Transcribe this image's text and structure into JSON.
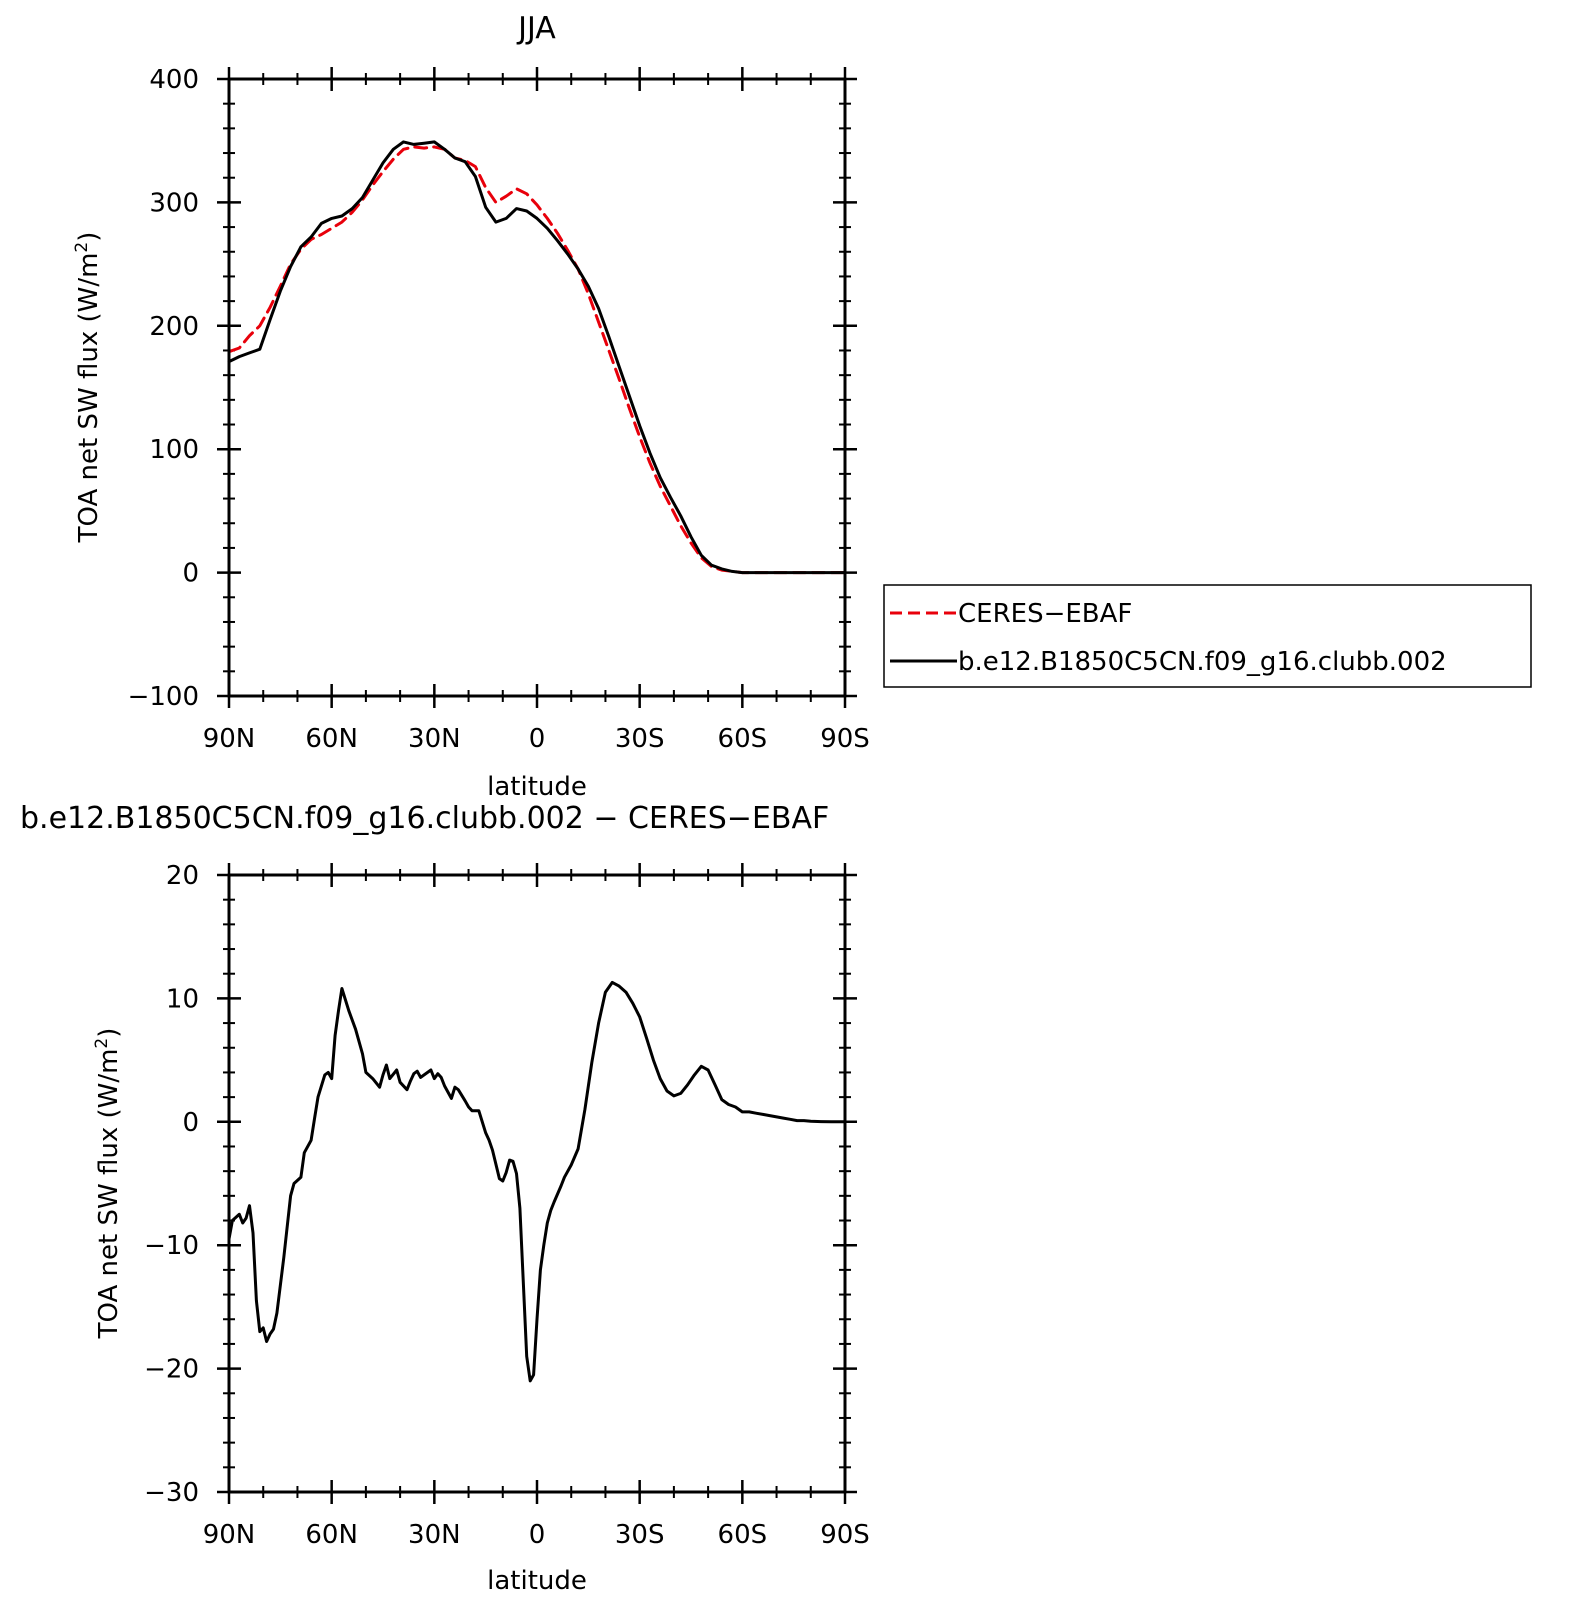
{
  "colors": {
    "ceres": "#e8000b",
    "model": "#000000"
  },
  "top_panel": {
    "title": "JJA",
    "xlabel": "latitude",
    "ylabel_main": "TOA net SW flux (W/m",
    "ylabel_sup": "2",
    "ylabel_end": ")"
  },
  "bottom_panel": {
    "title": "b.e12.B1850C5CN.f09_g16.clubb.002 − CERES−EBAF",
    "xlabel": "latitude",
    "ylabel_main": "TOA net SW flux (W/m",
    "ylabel_sup": "2",
    "ylabel_end": ")"
  },
  "legend": {
    "items": [
      {
        "label": "CERES−EBAF",
        "style": "dashed",
        "color": "#e8000b"
      },
      {
        "label": "b.e12.B1850C5CN.f09_g16.clubb.002",
        "style": "solid",
        "color": "#000000"
      }
    ]
  },
  "chart_data": [
    {
      "type": "line",
      "title": "JJA",
      "xlabel": "latitude",
      "ylabel": "TOA net SW flux (W/m2)",
      "xlim": [
        90,
        -90
      ],
      "ylim": [
        -100,
        400
      ],
      "xticks": [
        90,
        60,
        30,
        0,
        -30,
        -60,
        -90
      ],
      "xtick_labels": [
        "90N",
        "60N",
        "30N",
        "0",
        "30S",
        "60S",
        "90S"
      ],
      "yticks": [
        -100,
        0,
        100,
        200,
        300,
        400
      ],
      "ytick_labels": [
        "−100",
        "0",
        "100",
        "200",
        "300",
        "400"
      ],
      "legend_position": "right",
      "series": [
        {
          "name": "CERES−EBAF",
          "style": "dashed",
          "color": "#e8000b",
          "x": [
            90,
            87,
            84,
            81,
            78,
            75,
            72,
            69,
            66,
            63,
            60,
            57,
            54,
            51,
            48,
            45,
            42,
            39,
            36,
            33,
            30,
            27,
            24,
            21,
            18,
            15,
            12,
            9,
            6,
            3,
            0,
            -3,
            -6,
            -9,
            -12,
            -15,
            -18,
            -21,
            -24,
            -27,
            -30,
            -33,
            -36,
            -39,
            -42,
            -45,
            -48,
            -51,
            -54,
            -57,
            -60,
            -63,
            -66,
            -69,
            -72,
            -75,
            -78,
            -81,
            -84,
            -87,
            -90
          ],
          "y": [
            179,
            182,
            192,
            200,
            215,
            232,
            250,
            262,
            270,
            274,
            279,
            284,
            292,
            302,
            314,
            325,
            335,
            343,
            345,
            344,
            345,
            343,
            336,
            334,
            329,
            312,
            300,
            305,
            311,
            307,
            298,
            287,
            275,
            261,
            246,
            226,
            203,
            180,
            157,
            133,
            110,
            89,
            70,
            54,
            38,
            24,
            12,
            5,
            2,
            1,
            0,
            0,
            0,
            0,
            0,
            0,
            0,
            0,
            0,
            0,
            0
          ]
        },
        {
          "name": "b.e12.B1850C5CN.f09_g16.clubb.002",
          "style": "solid",
          "color": "#000000",
          "x": [
            90,
            87,
            84,
            81,
            78,
            75,
            72,
            69,
            66,
            63,
            60,
            57,
            54,
            51,
            48,
            45,
            42,
            39,
            36,
            33,
            30,
            27,
            24,
            21,
            18,
            15,
            12,
            9,
            6,
            3,
            0,
            -3,
            -6,
            -9,
            -12,
            -15,
            -18,
            -21,
            -24,
            -27,
            -30,
            -33,
            -36,
            -39,
            -42,
            -45,
            -48,
            -51,
            -54,
            -57,
            -60,
            -63,
            -66,
            -69,
            -72,
            -75,
            -78,
            -81,
            -84,
            -87,
            -90
          ],
          "y": [
            171,
            175,
            178,
            181,
            205,
            228,
            248,
            264,
            272,
            283,
            287,
            289,
            295,
            304,
            318,
            332,
            343,
            349,
            347,
            348,
            349,
            343,
            336,
            333,
            321,
            296,
            284,
            287,
            295,
            293,
            287,
            279,
            269,
            258,
            246,
            232,
            214,
            191,
            167,
            143,
            119,
            97,
            77,
            61,
            46,
            29,
            14,
            6,
            3,
            1,
            0,
            0,
            0,
            0,
            0,
            0,
            0,
            0,
            0,
            0,
            0
          ]
        }
      ]
    },
    {
      "type": "line",
      "title": "b.e12.B1850C5CN.f09_g16.clubb.002 − CERES−EBAF",
      "xlabel": "latitude",
      "ylabel": "TOA net SW flux (W/m2)",
      "xlim": [
        90,
        -90
      ],
      "ylim": [
        -30,
        20
      ],
      "xticks": [
        90,
        60,
        30,
        0,
        -30,
        -60,
        -90
      ],
      "xtick_labels": [
        "90N",
        "60N",
        "30N",
        "0",
        "30S",
        "60S",
        "90S"
      ],
      "yticks": [
        -30,
        -20,
        -10,
        0,
        10,
        20
      ],
      "ytick_labels": [
        "−30",
        "−20",
        "−10",
        "0",
        "10",
        "20"
      ],
      "series": [
        {
          "style": "solid",
          "color": "#000000",
          "x": [
            90,
            89,
            87,
            86,
            85,
            84,
            83,
            82,
            81,
            80,
            79,
            78,
            77,
            76,
            74,
            72,
            71,
            69,
            68,
            66,
            65,
            64,
            62,
            61,
            60,
            59,
            58,
            57,
            55,
            53,
            51,
            50,
            48,
            46,
            45,
            44,
            43,
            41,
            40,
            38,
            37,
            36,
            35,
            34,
            33,
            31,
            30,
            29,
            28,
            27,
            25,
            24,
            23,
            21,
            20,
            19,
            17,
            15,
            14,
            13,
            11,
            10,
            9,
            8,
            7,
            6,
            5,
            4,
            3,
            2,
            1,
            0,
            -1,
            -2,
            -3,
            -4,
            -5,
            -7,
            -8,
            -10,
            -12,
            -14,
            -16,
            -18,
            -20,
            -22,
            -24,
            -26,
            -28,
            -30,
            -32,
            -34,
            -36,
            -38,
            -40,
            -42,
            -44,
            -46,
            -48,
            -50,
            -52,
            -54,
            -56,
            -58,
            -60,
            -62,
            -64,
            -66,
            -68,
            -70,
            -72,
            -74,
            -76,
            -78,
            -80,
            -83,
            -86,
            -90
          ],
          "y": [
            -9.5,
            -8.0,
            -7.5,
            -8.2,
            -7.8,
            -6.8,
            -9.0,
            -14.5,
            -17.0,
            -16.7,
            -17.8,
            -17.2,
            -16.8,
            -15.5,
            -11.0,
            -6.0,
            -5.0,
            -4.5,
            -2.5,
            -1.5,
            0.3,
            2.0,
            3.8,
            4.0,
            3.5,
            7.0,
            9.0,
            10.8,
            9.0,
            7.5,
            5.5,
            4.0,
            3.5,
            2.8,
            3.8,
            4.6,
            3.5,
            4.2,
            3.2,
            2.6,
            3.3,
            3.9,
            4.1,
            3.6,
            3.8,
            4.2,
            3.5,
            3.9,
            3.6,
            2.9,
            1.9,
            2.8,
            2.6,
            1.7,
            1.2,
            0.9,
            0.9,
            -0.9,
            -1.5,
            -2.3,
            -4.6,
            -4.8,
            -4.1,
            -3.1,
            -3.2,
            -4.2,
            -7.0,
            -13.0,
            -19.0,
            -21.0,
            -20.5,
            -16.0,
            -12.0,
            -10.0,
            -8.2,
            -7.2,
            -6.5,
            -5.2,
            -4.5,
            -3.5,
            -2.2,
            1.0,
            4.8,
            8.0,
            10.5,
            11.3,
            11.0,
            10.5,
            9.6,
            8.5,
            6.8,
            5.0,
            3.5,
            2.5,
            2.1,
            2.3,
            3.0,
            3.8,
            4.5,
            4.2,
            3.0,
            1.8,
            1.4,
            1.2,
            0.8,
            0.8,
            0.7,
            0.6,
            0.5,
            0.4,
            0.3,
            0.2,
            0.1,
            0.1,
            0.05,
            0.02,
            0.0,
            0.0
          ]
        }
      ]
    }
  ]
}
